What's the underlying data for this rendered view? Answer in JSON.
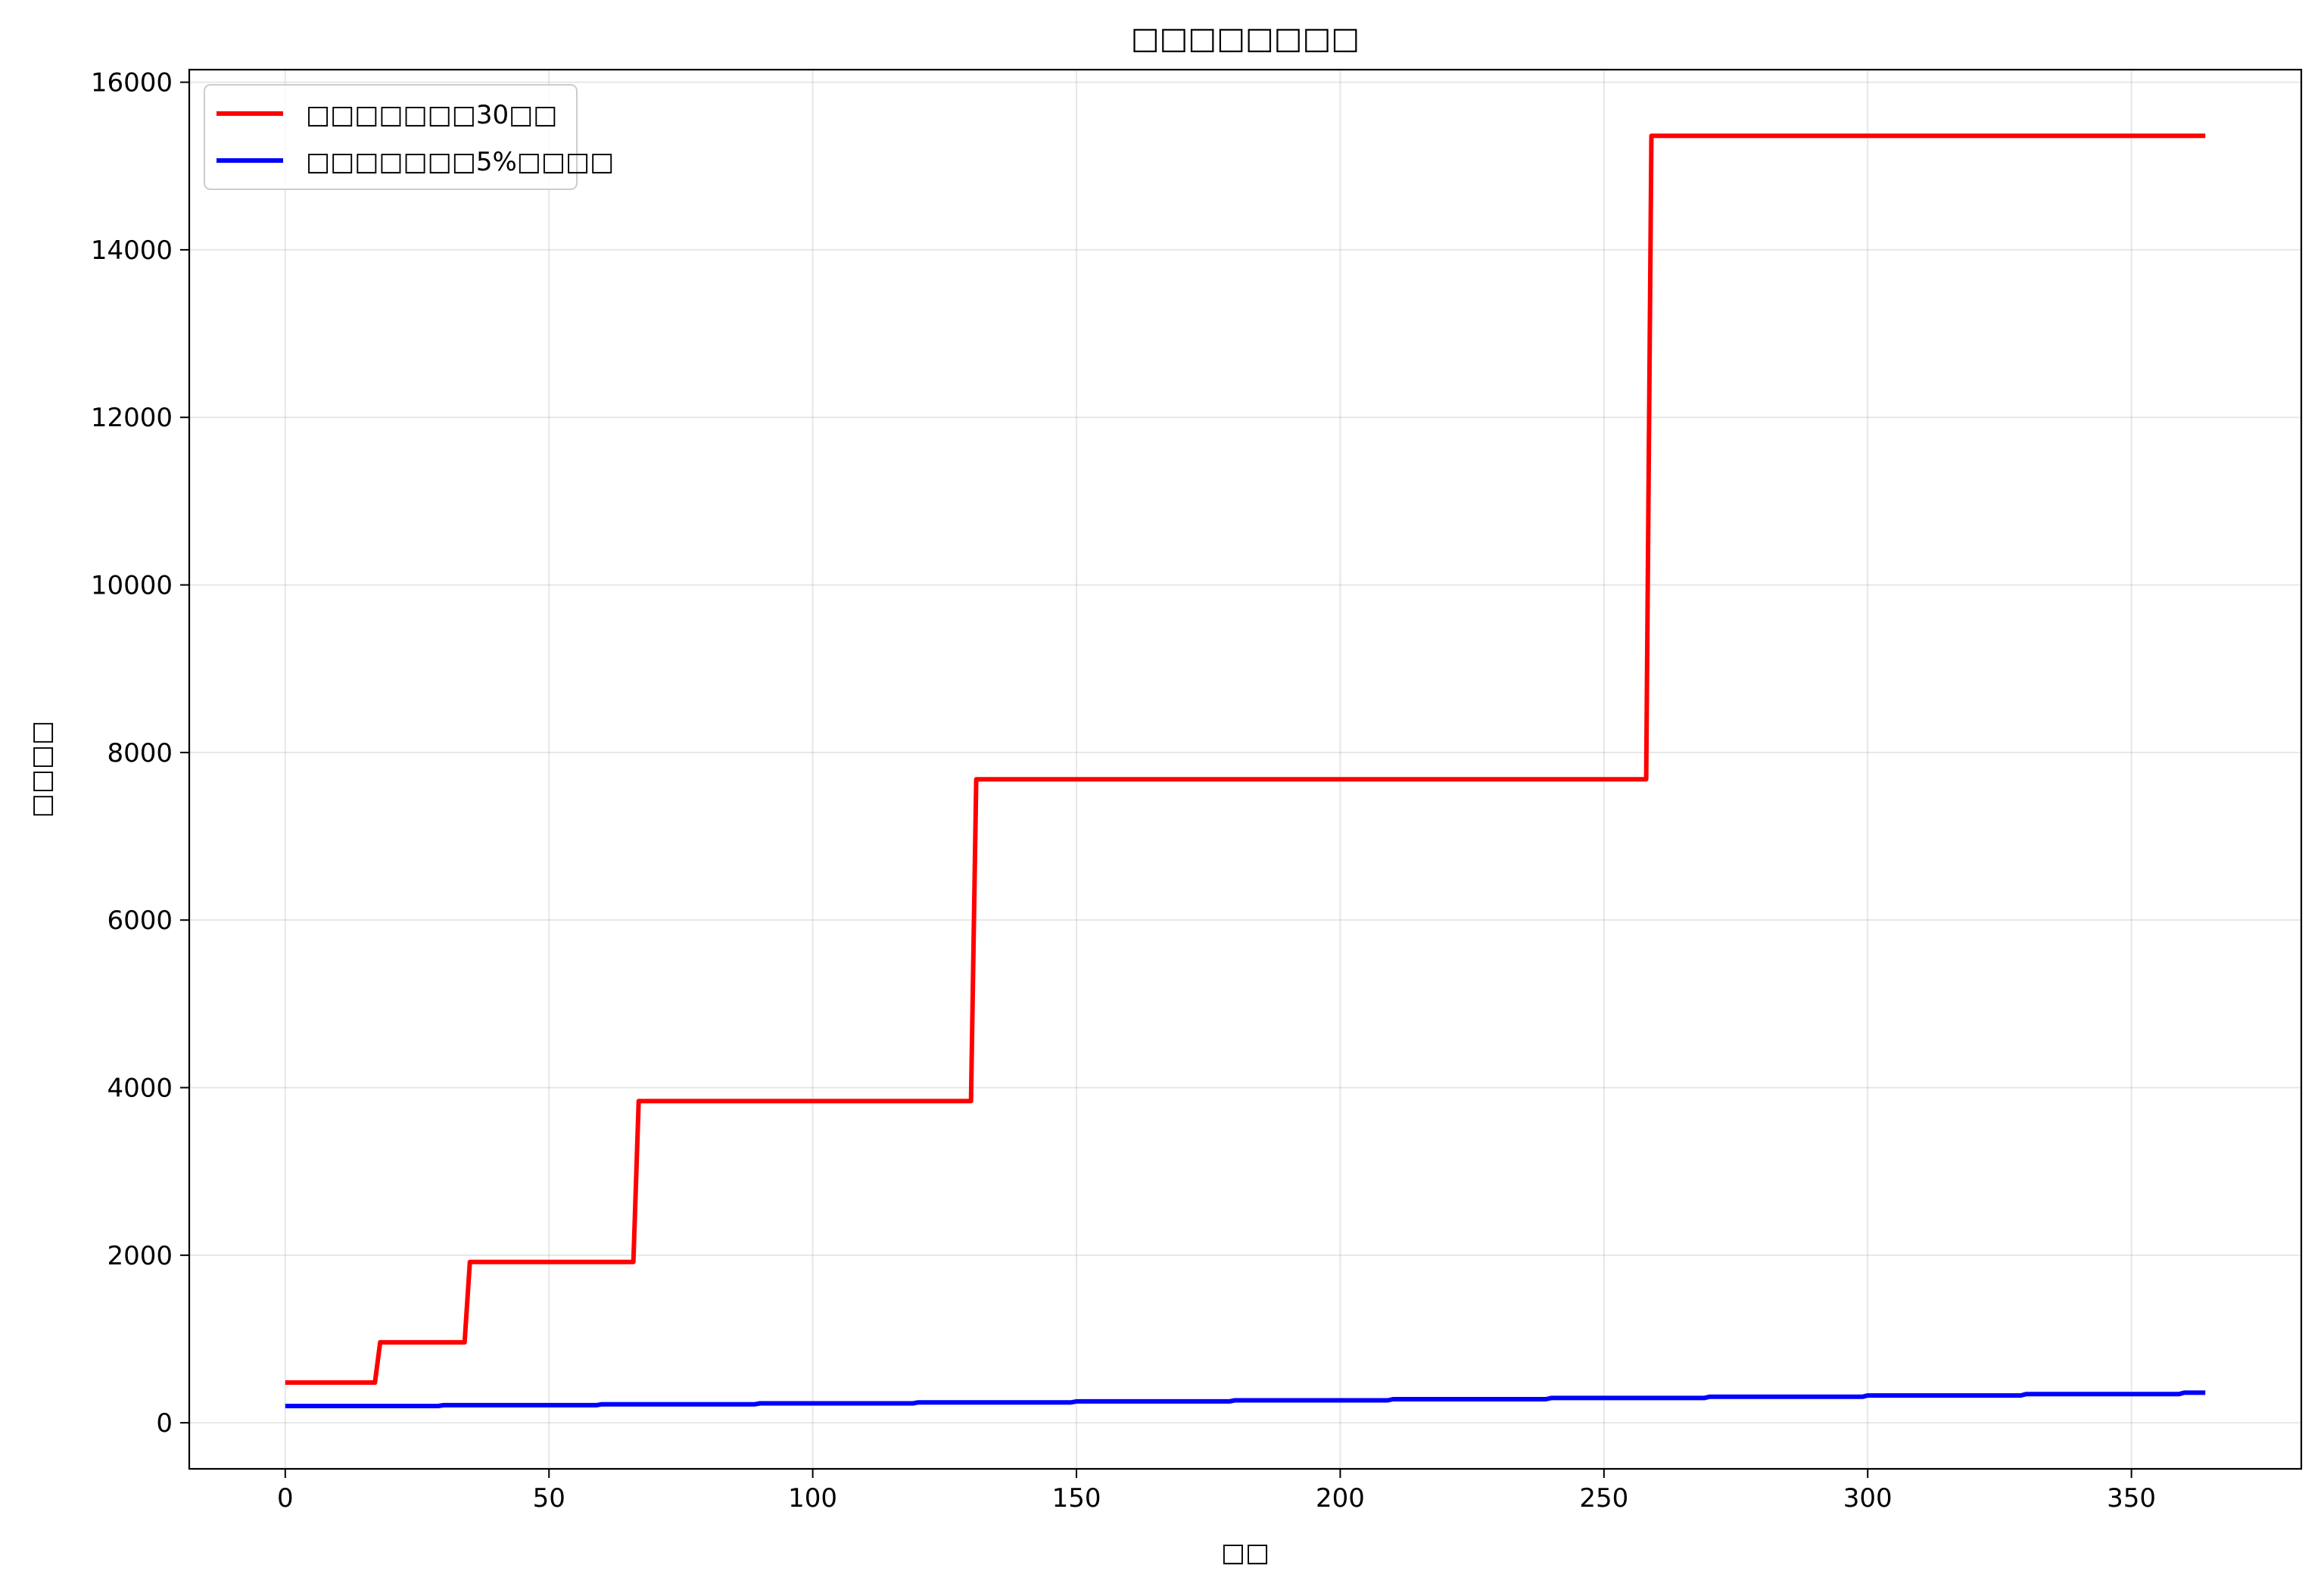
{
  "chart_data": {
    "type": "line",
    "title": "□□□□□□□□",
    "xlabel": "□□",
    "ylabel": "□□□□",
    "xlim": [
      -18.2,
      382.2
    ],
    "ylim": [
      -550,
      16150
    ],
    "x_ticks": [
      0,
      50,
      100,
      150,
      200,
      250,
      300,
      350
    ],
    "y_ticks": [
      0,
      2000,
      4000,
      6000,
      8000,
      10000,
      12000,
      14000,
      16000
    ],
    "grid": true,
    "legend_position": "top-left",
    "series": [
      {
        "name": "□□□□□□□30□□",
        "color": "#ff0000",
        "x": [
          0,
          17,
          18,
          34,
          35,
          66,
          67,
          130,
          131,
          258,
          259,
          364
        ],
        "y": [
          480,
          480,
          960,
          960,
          1920,
          1920,
          3840,
          3840,
          7680,
          7680,
          15360,
          15360
        ]
      },
      {
        "name": "□□□□□□□5%□□□□",
        "color": "#0000ff",
        "x": [
          0,
          29,
          30,
          59,
          60,
          89,
          90,
          119,
          120,
          149,
          150,
          179,
          180,
          209,
          210,
          239,
          240,
          269,
          270,
          299,
          300,
          329,
          330,
          359,
          360,
          364
        ],
        "y": [
          200,
          200,
          210,
          210,
          220.5,
          220.5,
          231.5,
          231.5,
          243.1,
          243.1,
          255.3,
          255.3,
          268.0,
          268.0,
          281.4,
          281.4,
          295.5,
          295.5,
          310.3,
          310.3,
          325.8,
          325.8,
          342.1,
          342.1,
          359.2,
          359.2
        ]
      }
    ]
  }
}
